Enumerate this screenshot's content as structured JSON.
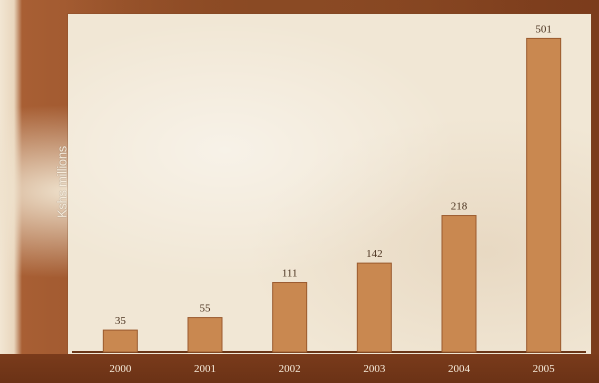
{
  "chart_data": {
    "type": "bar",
    "title": "",
    "xlabel": "",
    "ylabel": "Kshs millions",
    "categories": [
      "2000",
      "2001",
      "2002",
      "2003",
      "2004",
      "2005"
    ],
    "values": [
      35,
      55,
      111,
      142,
      218,
      501
    ],
    "ylim": [
      0,
      540
    ],
    "grid": false,
    "bar_color": "#c98850",
    "bar_edge_color": "#9a5a2e"
  }
}
